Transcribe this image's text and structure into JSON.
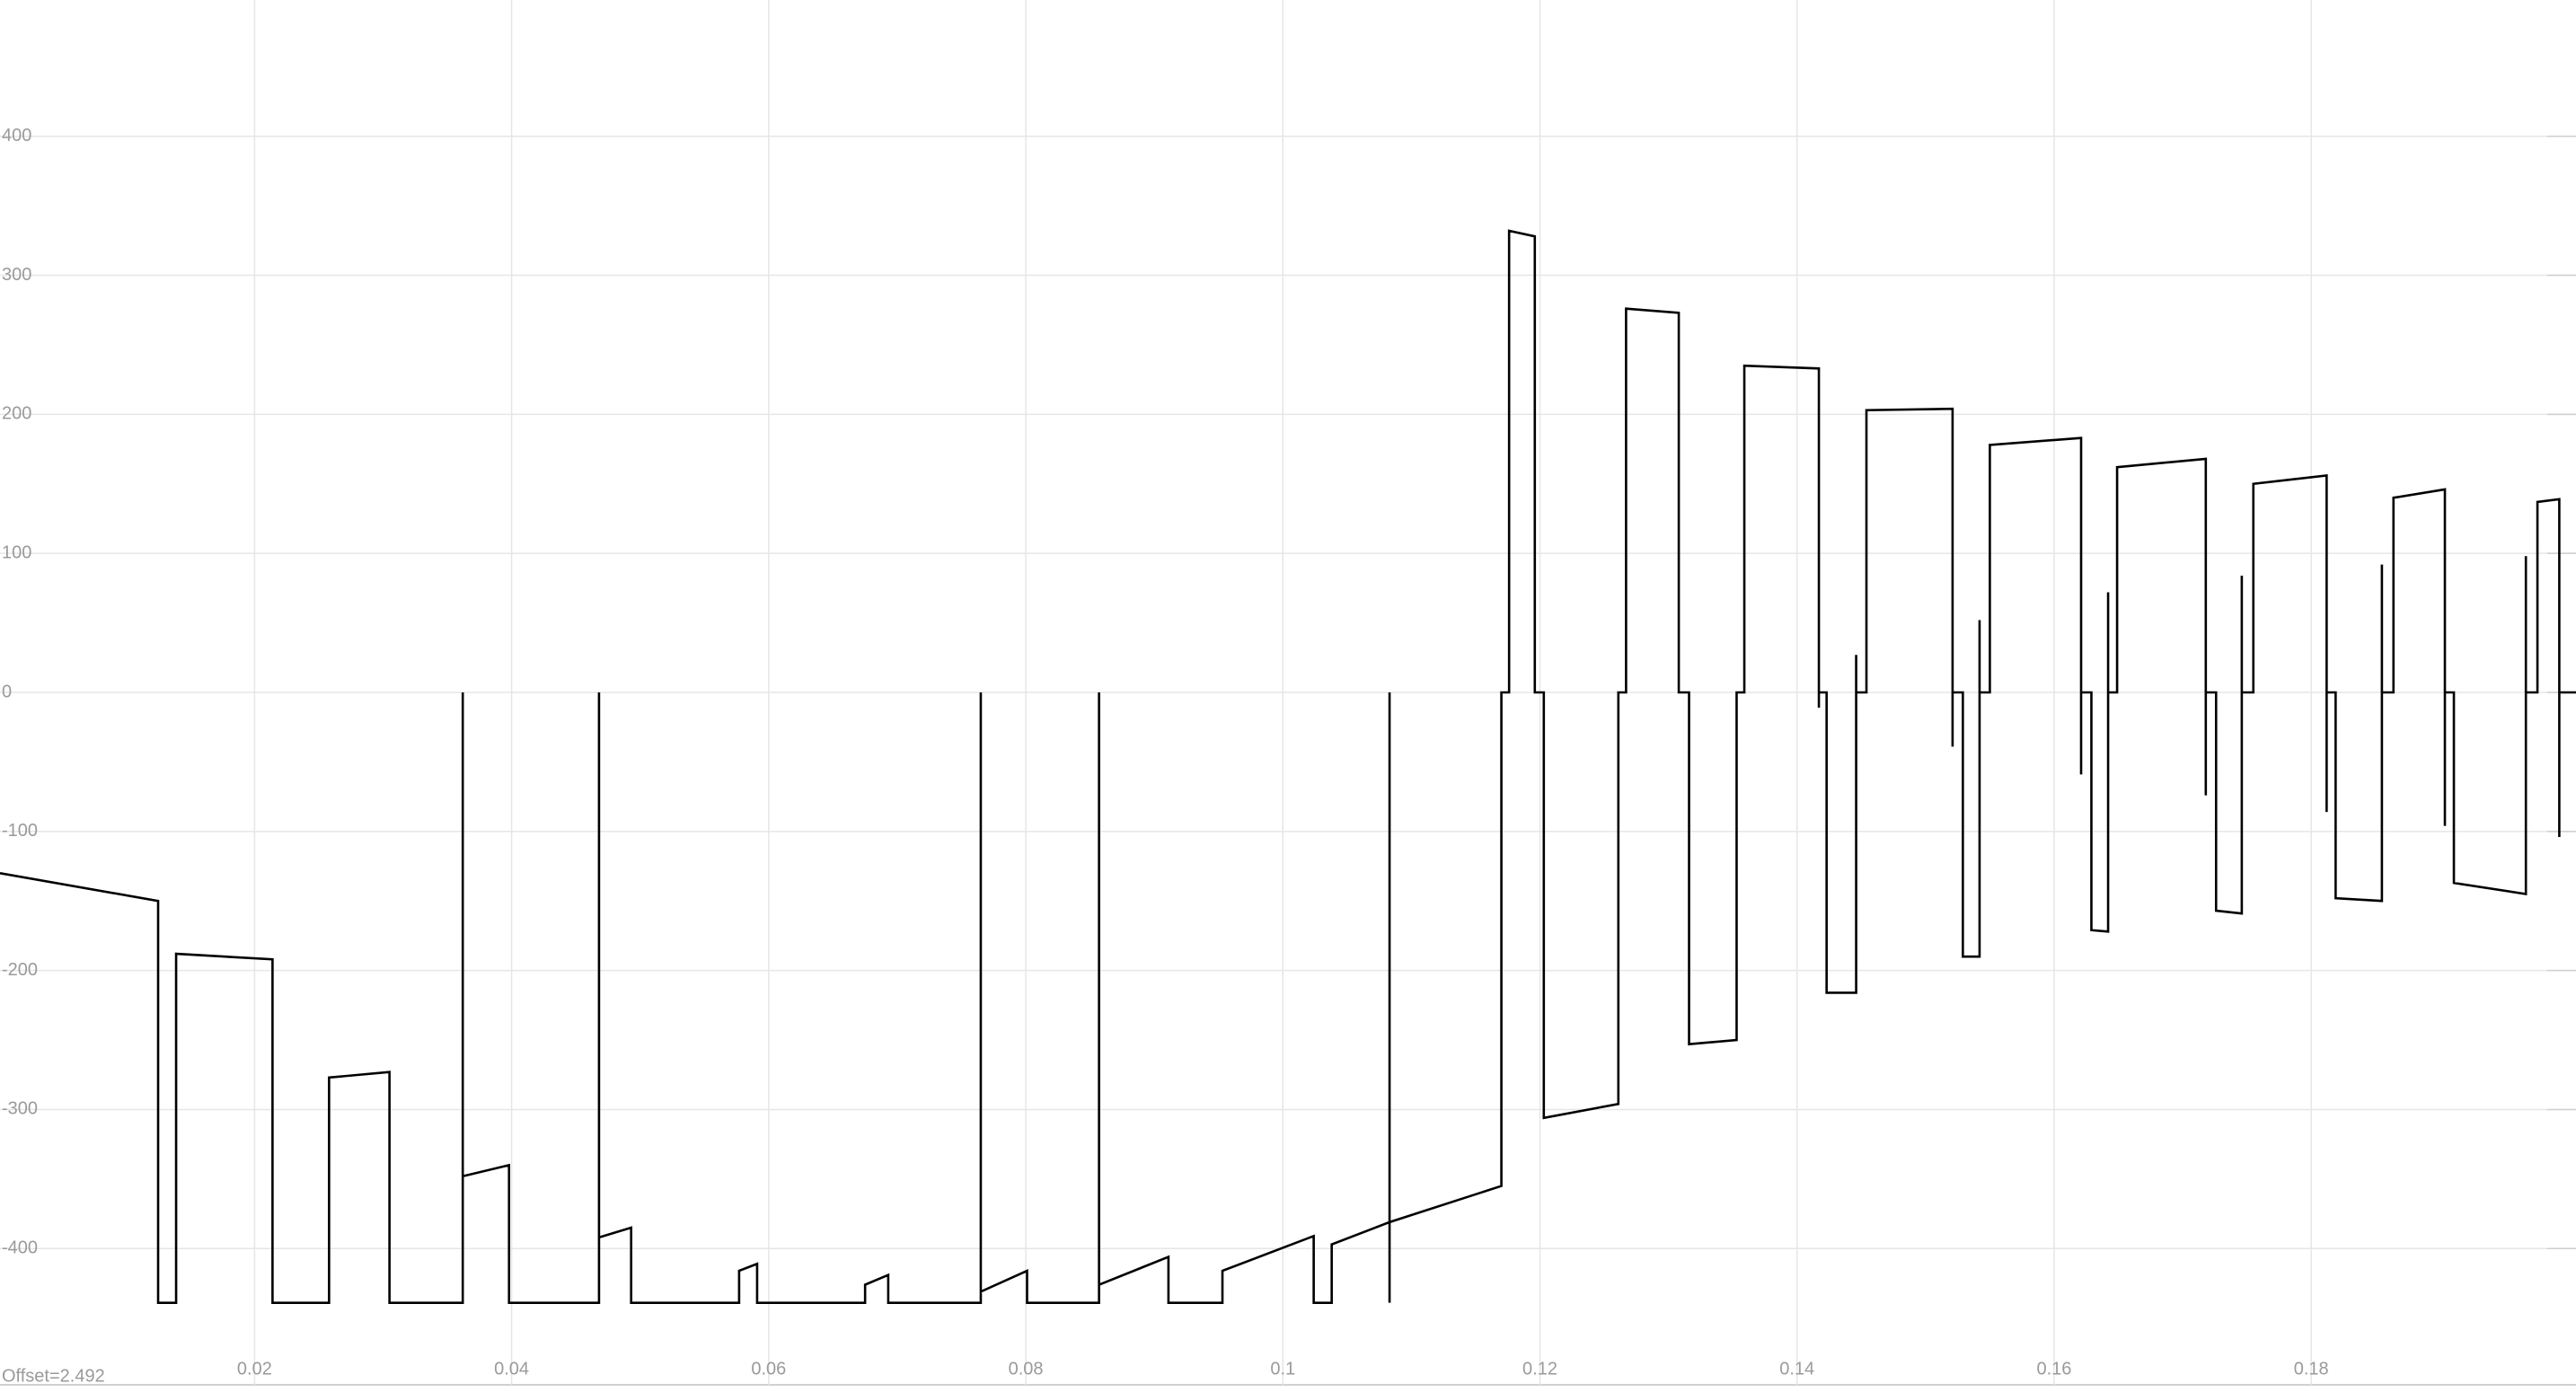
{
  "chart_data": {
    "type": "line",
    "annotation": "Offset=2.492",
    "color": "#000000",
    "grid": true,
    "xlim": [
      0.0002,
      0.2006
    ],
    "ylim": [
      -498,
      498
    ],
    "xticks": [
      0.02,
      0.04,
      0.06,
      0.08,
      0.1,
      0.12,
      0.14,
      0.16,
      0.18
    ],
    "yticks": [
      400,
      300,
      200,
      100,
      0,
      -100,
      -200,
      -300,
      -400
    ],
    "x": [
      0.0002,
      0.0125,
      0.0125,
      0.0139,
      0.0139,
      0.0214,
      0.0214,
      0.0258,
      0.0258,
      0.0305,
      0.0305,
      0.0362,
      0.0362,
      0.0362,
      0.0398,
      0.0398,
      0.0468,
      0.0468,
      0.0468,
      0.0493,
      0.0493,
      0.0577,
      0.0577,
      0.0591,
      0.0591,
      0.0675,
      0.0675,
      0.0693,
      0.0693,
      0.0765,
      0.0765,
      0.0765,
      0.0801,
      0.0801,
      0.0857,
      0.0857,
      0.0857,
      0.0911,
      0.0911,
      0.0953,
      0.0953,
      0.1024,
      0.1024,
      0.1038,
      0.1038,
      0.1083,
      0.1083,
      0.1083,
      0.1083,
      0.117,
      0.117,
      0.1176,
      0.1176,
      0.1196,
      0.1196,
      0.1203,
      0.1203,
      0.1261,
      0.1261,
      0.1267,
      0.1267,
      0.1308,
      0.1308,
      0.1316,
      0.1316,
      0.1353,
      0.1353,
      0.1359,
      0.1359,
      0.1417,
      0.1417,
      0.1417,
      0.1423,
      0.1423,
      0.1446,
      0.1446,
      0.1446,
      0.1454,
      0.1454,
      0.1521,
      0.1521,
      0.1521,
      0.1529,
      0.1529,
      0.1542,
      0.1542,
      0.1542,
      0.155,
      0.155,
      0.1621,
      0.1621,
      0.1621,
      0.1629,
      0.1629,
      0.1642,
      0.1642,
      0.1642,
      0.1649,
      0.1649,
      0.1718,
      0.1718,
      0.1718,
      0.1726,
      0.1726,
      0.1746,
      0.1746,
      0.1746,
      0.1755,
      0.1755,
      0.1812,
      0.1812,
      0.1812,
      0.1819,
      0.1819,
      0.1855,
      0.1855,
      0.1855,
      0.1864,
      0.1864,
      0.1904,
      0.1904,
      0.1904,
      0.1911,
      0.1911,
      0.1967,
      0.1967,
      0.1967,
      0.1976,
      0.1976,
      0.1993,
      0.1993,
      0.1993,
      0.2006
    ],
    "values": [
      -130,
      -150,
      -439,
      -439,
      -188,
      -192,
      -439,
      -439,
      -277,
      -273,
      -439,
      -439,
      0,
      -348,
      -340,
      -439,
      -439,
      0,
      -392,
      -385,
      -439,
      -439,
      -416,
      -411,
      -439,
      -439,
      -426,
      -419,
      -439,
      -439,
      0,
      -431,
      -416,
      -439,
      -439,
      0,
      -426,
      -406,
      -439,
      -439,
      -416,
      -391,
      -439,
      -439,
      -397,
      -381,
      0,
      -439,
      -381,
      -355,
      0,
      0,
      332,
      328,
      0,
      0,
      -306,
      -296,
      0,
      0,
      276,
      273,
      0,
      0,
      -253,
      -250,
      0,
      0,
      235,
      233,
      -11,
      0,
      0,
      -216,
      -216,
      27,
      0,
      0,
      203,
      204,
      -39,
      0,
      0,
      -190,
      -190,
      52,
      0,
      0,
      178,
      183,
      -59,
      0,
      0,
      -171,
      -172,
      72,
      0,
      0,
      162,
      168,
      -74,
      0,
      0,
      -157,
      -159,
      84,
      0,
      0,
      150,
      156,
      -86,
      0,
      0,
      -148,
      -150,
      92,
      0,
      0,
      140,
      146,
      -96,
      0,
      0,
      -137,
      -145,
      98,
      0,
      0,
      137,
      139,
      -104,
      0,
      0
    ]
  }
}
